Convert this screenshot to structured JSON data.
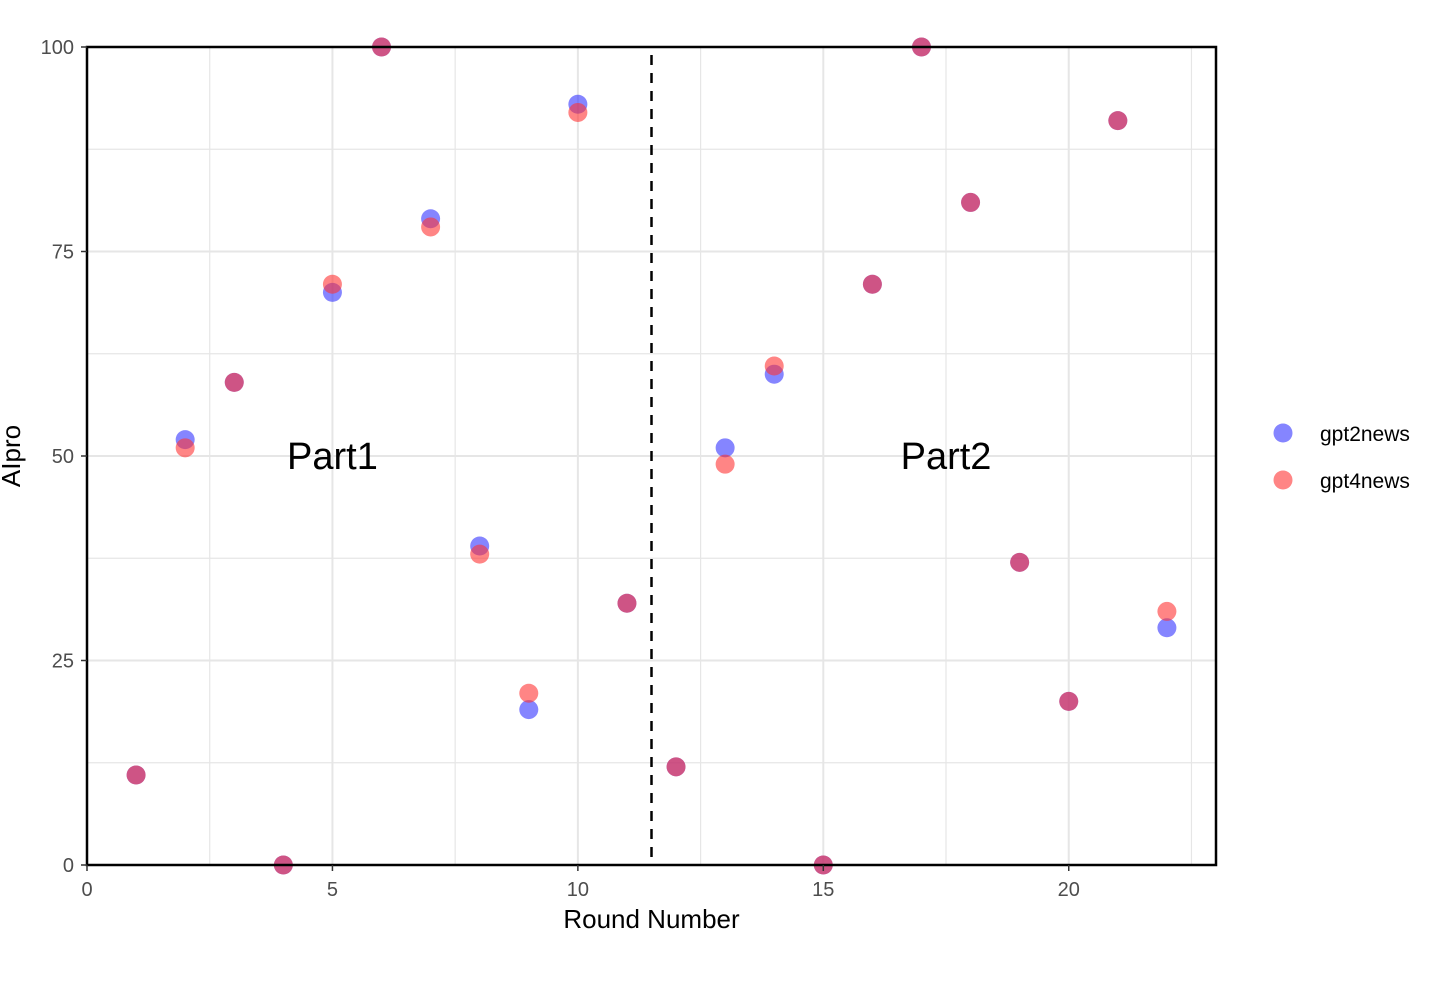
{
  "chart_data": {
    "type": "scatter",
    "xlabel": "Round Number",
    "ylabel": "AIpro",
    "xlim": [
      0,
      23
    ],
    "ylim": [
      0,
      100
    ],
    "x_ticks": [
      0,
      5,
      10,
      15,
      20
    ],
    "y_ticks": [
      0,
      25,
      50,
      75,
      100
    ],
    "grid": true,
    "legend_position": "right",
    "divider_x": 11.5,
    "annotations": [
      {
        "text": "Part1",
        "x": 5,
        "y": 50
      },
      {
        "text": "Part2",
        "x": 17.5,
        "y": 50
      }
    ],
    "series": [
      {
        "name": "gpt2news",
        "color": "#3333ff",
        "x": [
          1,
          2,
          3,
          4,
          5,
          6,
          7,
          8,
          9,
          10,
          11,
          12,
          13,
          14,
          15,
          16,
          17,
          18,
          19,
          20,
          21,
          22
        ],
        "y": [
          11,
          52,
          59,
          0,
          70,
          100,
          79,
          39,
          19,
          93,
          32,
          12,
          51,
          60,
          0,
          71,
          100,
          81,
          37,
          20,
          91,
          29
        ]
      },
      {
        "name": "gpt4news",
        "color": "#ff3333",
        "x": [
          1,
          2,
          3,
          4,
          5,
          6,
          7,
          8,
          9,
          10,
          11,
          12,
          13,
          14,
          15,
          16,
          17,
          18,
          19,
          20,
          21,
          22
        ],
        "y": [
          11,
          51,
          59,
          0,
          71,
          100,
          78,
          38,
          21,
          92,
          32,
          12,
          49,
          61,
          0,
          71,
          100,
          81,
          37,
          20,
          91,
          31
        ]
      }
    ]
  }
}
